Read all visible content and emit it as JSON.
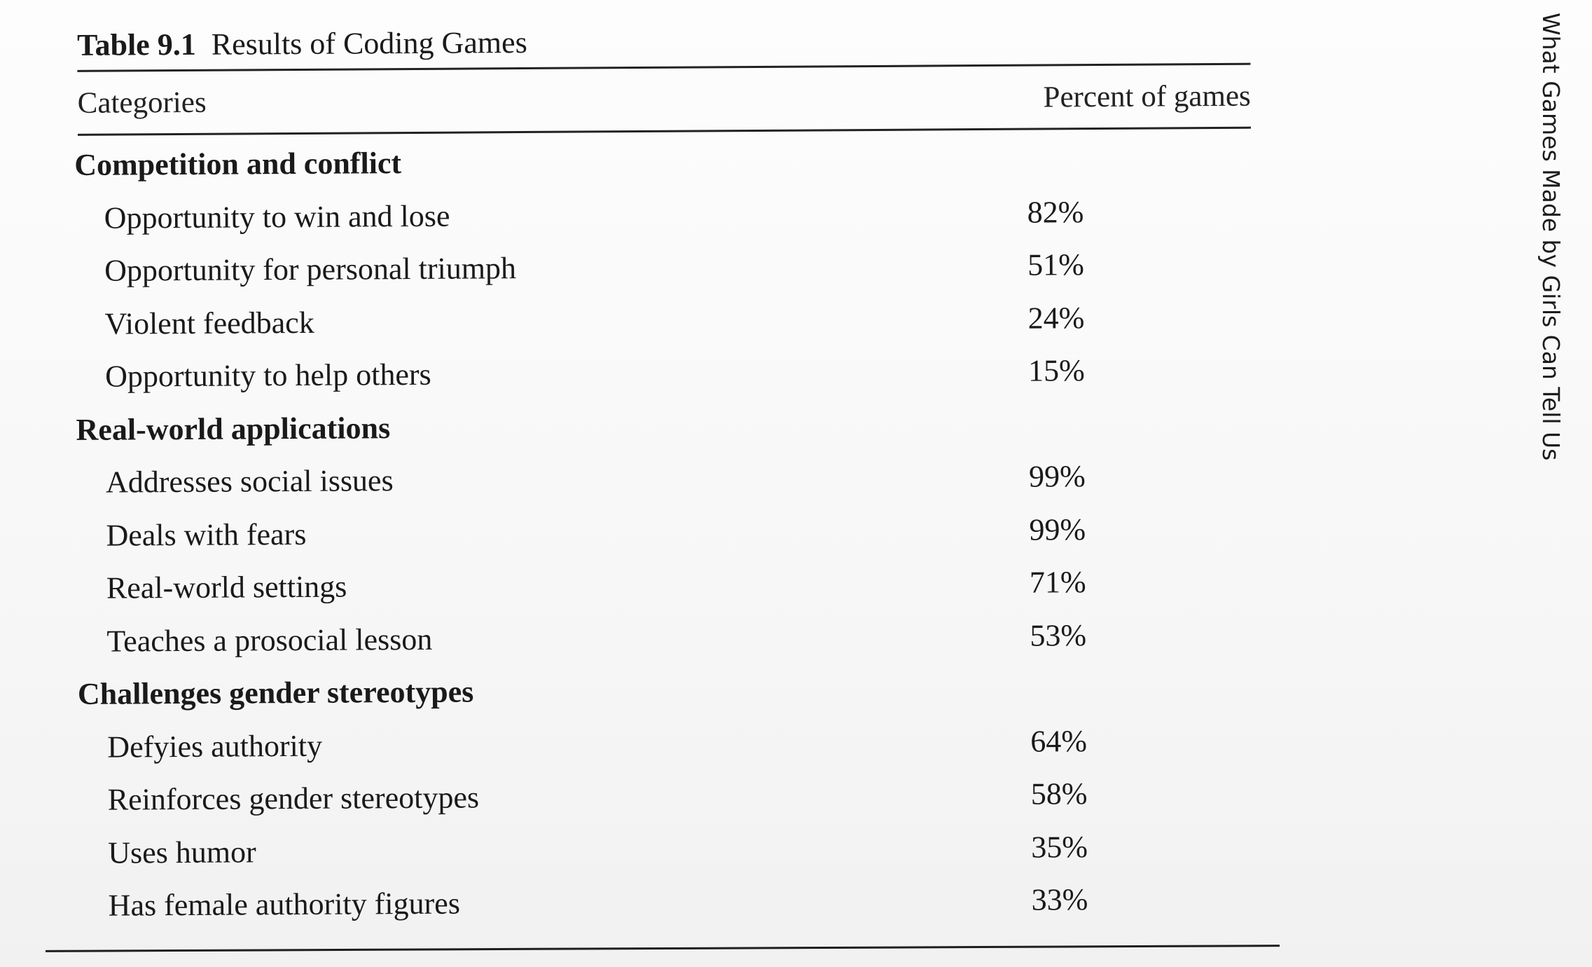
{
  "running_head": "What Games Made by Girls Can Tell Us",
  "table": {
    "number": "Table 9.1",
    "caption": "Results of Coding Games",
    "columns": [
      "Categories",
      "Percent of games"
    ],
    "rows": [
      {
        "type": "section",
        "label": "Competition and conflict",
        "value": ""
      },
      {
        "type": "item",
        "label": "Opportunity to win and lose",
        "value": "82%"
      },
      {
        "type": "item",
        "label": "Opportunity for personal triumph",
        "value": "51%"
      },
      {
        "type": "item",
        "label": "Violent feedback",
        "value": "24%"
      },
      {
        "type": "item",
        "label": "Opportunity to help others",
        "value": "15%"
      },
      {
        "type": "section",
        "label": "Real-world applications",
        "value": ""
      },
      {
        "type": "item",
        "label": "Addresses social issues",
        "value": "99%"
      },
      {
        "type": "item",
        "label": "Deals with fears",
        "value": "99%"
      },
      {
        "type": "item",
        "label": "Real-world settings",
        "value": "71%"
      },
      {
        "type": "item",
        "label": "Teaches a prosocial lesson",
        "value": "53%"
      },
      {
        "type": "section",
        "label": "Challenges gender stereotypes",
        "value": ""
      },
      {
        "type": "item",
        "label": "Defyies authority",
        "value": "64%"
      },
      {
        "type": "item",
        "label": "Reinforces gender stereotypes",
        "value": "58%"
      },
      {
        "type": "item",
        "label": "Uses humor",
        "value": "35%"
      },
      {
        "type": "item",
        "label": "Has female authority figures",
        "value": "33%"
      }
    ]
  }
}
